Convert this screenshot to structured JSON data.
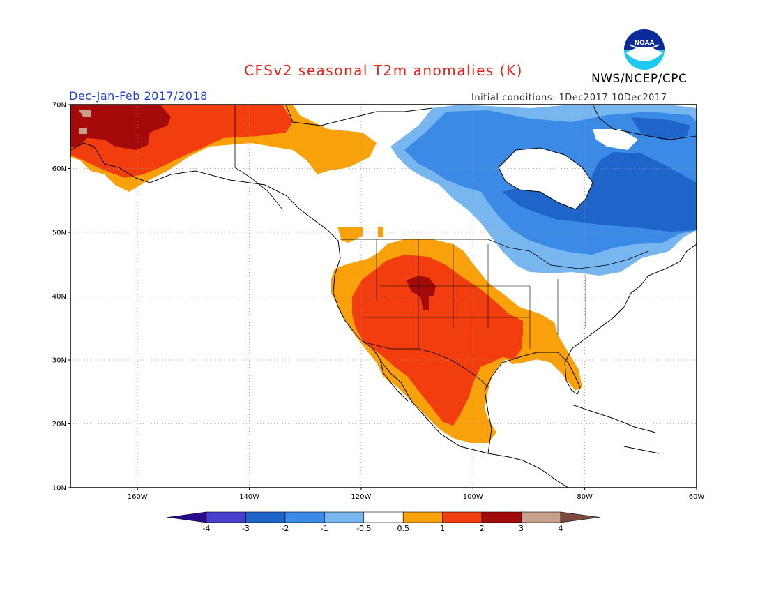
{
  "header": {
    "title": "CFSv2 seasonal T2m anomalies (K)",
    "agency": "NWS/NCEP/CPC",
    "logo_text": "NOAA",
    "season": "Dec-Jan-Feb 2017/2018",
    "initial_conditions": "Initial conditions: 1Dec2017-10Dec2017"
  },
  "map": {
    "lat_range": [
      10,
      70
    ],
    "lon_range": [
      -172,
      -60
    ],
    "lat_ticks": [
      {
        "value": 70,
        "label": "70N"
      },
      {
        "value": 60,
        "label": "60N"
      },
      {
        "value": 50,
        "label": "50N"
      },
      {
        "value": 40,
        "label": "40N"
      },
      {
        "value": 30,
        "label": "30N"
      },
      {
        "value": 20,
        "label": "20N"
      },
      {
        "value": 10,
        "label": "10N"
      }
    ],
    "lon_ticks": [
      {
        "value": -160,
        "label": "160W"
      },
      {
        "value": -140,
        "label": "140W"
      },
      {
        "value": -120,
        "label": "120W"
      },
      {
        "value": -100,
        "label": "100W"
      },
      {
        "value": -80,
        "label": "80W"
      },
      {
        "value": -60,
        "label": "60W"
      }
    ],
    "gridlines": "dotted"
  },
  "colorbar": {
    "levels": [
      "-4",
      "-3",
      "-2",
      "-1",
      "-0.5",
      "0.5",
      "1",
      "2",
      "3",
      "4"
    ],
    "colors": [
      "#2a0a8c",
      "#4a3fcf",
      "#1f64c8",
      "#3b8ae6",
      "#78b6ef",
      "#ffffff",
      "#f9a10a",
      "#f23e0e",
      "#a50a0a",
      "#c7a08c",
      "#7b4a3c"
    ]
  },
  "anomaly_regions": [
    {
      "name": "Alaska",
      "category": "1 to 2",
      "color": "#f23e0e"
    },
    {
      "name": "Western Alaska coast",
      "category": "2 to 3",
      "color": "#a50a0a"
    },
    {
      "name": "Yukon",
      "category": "0.5 to 1",
      "color": "#f9a10a"
    },
    {
      "name": "Southwest and Southern Plains US",
      "category": "1 to 2",
      "color": "#f23e0e"
    },
    {
      "name": "Central Rockies",
      "category": "2 to 3",
      "color": "#a50a0a"
    },
    {
      "name": "Mexico and Gulf Coast",
      "category": "0.5 to 1",
      "color": "#f9a10a"
    },
    {
      "name": "Northern Canada",
      "category": "-1 to -0.5",
      "color": "#78b6ef"
    },
    {
      "name": "Quebec and Labrador",
      "category": "-2 to -1",
      "color": "#3b8ae6"
    },
    {
      "name": "Eastern Quebec",
      "category": "-3 to -2",
      "color": "#1f64c8"
    }
  ]
}
